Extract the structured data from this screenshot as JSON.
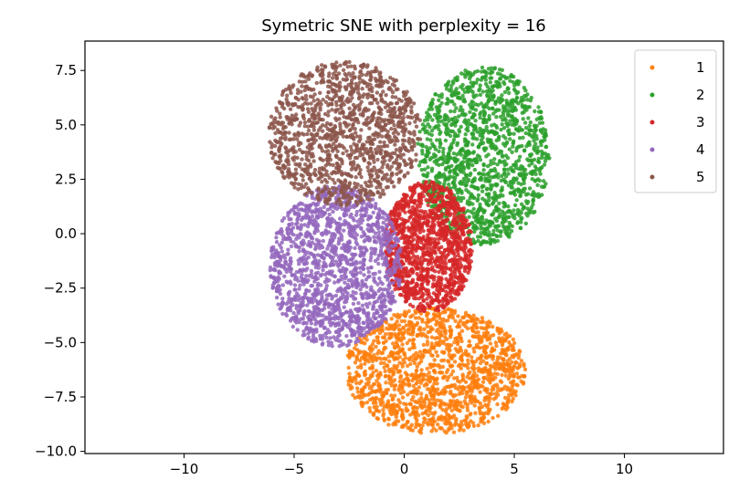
{
  "chart_data": {
    "type": "scatter",
    "title": "Symetric SNE with perplexity = 16",
    "xlabel": "",
    "ylabel": "",
    "xlim": [
      -14.5,
      14.5
    ],
    "ylim": [
      -10.1,
      8.85
    ],
    "x_ticks": [
      -10,
      -5,
      0,
      5,
      10
    ],
    "x_tick_labels": [
      "−10",
      "−5",
      "0",
      "5",
      "10"
    ],
    "y_ticks": [
      -10.0,
      -7.5,
      -5.0,
      -2.5,
      0.0,
      2.5,
      5.0,
      7.5
    ],
    "y_tick_labels": [
      "−10.0",
      "−7.5",
      "−5.0",
      "−2.5",
      "0.0",
      "2.5",
      "5.0",
      "7.5"
    ],
    "grid": false,
    "legend_position": "top-right",
    "series": [
      {
        "name": "1",
        "color": "#ff7f0e",
        "cluster": {
          "center": [
            1.4,
            -6.3
          ],
          "radius": [
            4.1,
            2.9
          ],
          "count": 1500
        }
      },
      {
        "name": "2",
        "color": "#2ca02c",
        "cluster": {
          "center": [
            3.6,
            3.6
          ],
          "radius": [
            3.0,
            4.1
          ],
          "count": 1400
        }
      },
      {
        "name": "3",
        "color": "#d62728",
        "cluster": {
          "center": [
            1.1,
            -0.6
          ],
          "radius": [
            2.0,
            3.0
          ],
          "count": 1300
        }
      },
      {
        "name": "4",
        "color": "#9467bd",
        "cluster": {
          "center": [
            -3.1,
            -1.5
          ],
          "radius": [
            3.0,
            3.7
          ],
          "count": 1500
        }
      },
      {
        "name": "5",
        "color": "#8c564b",
        "cluster": {
          "center": [
            -2.7,
            4.6
          ],
          "radius": [
            3.5,
            3.3
          ],
          "count": 1300
        }
      }
    ]
  }
}
